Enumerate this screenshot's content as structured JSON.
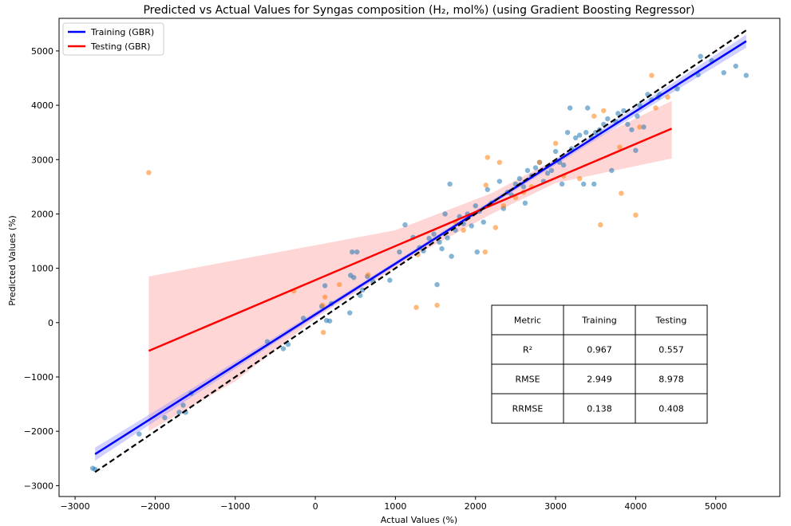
{
  "chart_data": {
    "type": "scatter",
    "title": "Predicted vs Actual Values for Syngas composition (H₂, mol%) (using Gradient Boosting Regressor)",
    "xlabel": "Actual Values (%)",
    "ylabel": "Predicted Values (%)",
    "xlim": [
      -3200,
      5800
    ],
    "ylim": [
      -3200,
      5600
    ],
    "x_ticks": [
      -3000,
      -2000,
      -1000,
      0,
      1000,
      2000,
      3000,
      4000,
      5000
    ],
    "y_ticks": [
      -3000,
      -2000,
      -1000,
      0,
      1000,
      2000,
      3000,
      4000,
      5000
    ],
    "grid": false,
    "legend_position": "top-left",
    "colors": {
      "training_points": "#1f77b4",
      "testing_points": "#ff7f0e",
      "training_line": "#0000ff",
      "testing_line": "#ff0000",
      "training_band": "#9999ff",
      "testing_band": "#ff9999",
      "ideal_line": "#000000"
    },
    "legend": [
      {
        "label": "Training (GBR)",
        "color": "#0000ff"
      },
      {
        "label": "Testing (GBR)",
        "color": "#ff0000"
      }
    ],
    "ideal_line": {
      "x": [
        -2750,
        5380
      ],
      "y": [
        -2750,
        5380
      ]
    },
    "series": [
      {
        "name": "Training (GBR)",
        "kind": "points",
        "points": [
          [
            -2780,
            -2680
          ],
          [
            -2750,
            -2700
          ],
          [
            -2200,
            -2050
          ],
          [
            -1880,
            -1750
          ],
          [
            -1700,
            -1650
          ],
          [
            -1650,
            -1520
          ],
          [
            -1620,
            -1650
          ],
          [
            -1550,
            -1300
          ],
          [
            -600,
            -350
          ],
          [
            -400,
            -480
          ],
          [
            -340,
            -400
          ],
          [
            -150,
            80
          ],
          [
            80,
            300
          ],
          [
            120,
            680
          ],
          [
            140,
            40
          ],
          [
            180,
            30
          ],
          [
            200,
            350
          ],
          [
            430,
            180
          ],
          [
            440,
            870
          ],
          [
            480,
            830
          ],
          [
            460,
            1300
          ],
          [
            520,
            1300
          ],
          [
            560,
            500
          ],
          [
            590,
            600
          ],
          [
            650,
            850
          ],
          [
            720,
            760
          ],
          [
            930,
            780
          ],
          [
            1050,
            1300
          ],
          [
            1120,
            1800
          ],
          [
            1220,
            1570
          ],
          [
            1300,
            1380
          ],
          [
            1350,
            1320
          ],
          [
            1420,
            1550
          ],
          [
            1480,
            1630
          ],
          [
            1520,
            700
          ],
          [
            1550,
            1480
          ],
          [
            1580,
            1360
          ],
          [
            1620,
            2000
          ],
          [
            1650,
            1560
          ],
          [
            1680,
            2550
          ],
          [
            1700,
            1220
          ],
          [
            1750,
            1700
          ],
          [
            1800,
            1950
          ],
          [
            1850,
            1820
          ],
          [
            1900,
            2000
          ],
          [
            1950,
            1780
          ],
          [
            2000,
            2150
          ],
          [
            2020,
            1300
          ],
          [
            2050,
            2050
          ],
          [
            2100,
            1850
          ],
          [
            2150,
            2450
          ],
          [
            2200,
            2200
          ],
          [
            2300,
            2600
          ],
          [
            2350,
            2100
          ],
          [
            2400,
            2400
          ],
          [
            2450,
            2350
          ],
          [
            2500,
            2550
          ],
          [
            2550,
            2650
          ],
          [
            2600,
            2500
          ],
          [
            2620,
            2200
          ],
          [
            2650,
            2800
          ],
          [
            2700,
            2700
          ],
          [
            2750,
            2850
          ],
          [
            2800,
            2950
          ],
          [
            2850,
            2600
          ],
          [
            2900,
            2750
          ],
          [
            2950,
            2800
          ],
          [
            3000,
            3150
          ],
          [
            3050,
            2950
          ],
          [
            3080,
            2550
          ],
          [
            3100,
            2900
          ],
          [
            3150,
            3500
          ],
          [
            3180,
            3950
          ],
          [
            3200,
            3200
          ],
          [
            3250,
            3400
          ],
          [
            3300,
            3450
          ],
          [
            3350,
            2550
          ],
          [
            3380,
            3500
          ],
          [
            3400,
            3950
          ],
          [
            3450,
            3400
          ],
          [
            3480,
            2550
          ],
          [
            3500,
            3500
          ],
          [
            3550,
            3550
          ],
          [
            3600,
            3650
          ],
          [
            3650,
            3750
          ],
          [
            3700,
            2800
          ],
          [
            3750,
            3700
          ],
          [
            3780,
            3850
          ],
          [
            3850,
            3900
          ],
          [
            3900,
            3650
          ],
          [
            3950,
            3550
          ],
          [
            4000,
            3170
          ],
          [
            4020,
            3800
          ],
          [
            4050,
            4000
          ],
          [
            4100,
            3600
          ],
          [
            4150,
            4200
          ],
          [
            4200,
            4100
          ],
          [
            4280,
            4150
          ],
          [
            4300,
            4200
          ],
          [
            4520,
            4300
          ],
          [
            4780,
            4560
          ],
          [
            4810,
            4900
          ],
          [
            4950,
            4820
          ],
          [
            5100,
            4600
          ],
          [
            5250,
            4720
          ],
          [
            5380,
            4550
          ]
        ]
      },
      {
        "name": "Testing (GBR)",
        "kind": "points",
        "points": [
          [
            -2080,
            2760
          ],
          [
            -270,
            580
          ],
          [
            90,
            320
          ],
          [
            100,
            -180
          ],
          [
            120,
            470
          ],
          [
            300,
            700
          ],
          [
            660,
            880
          ],
          [
            1260,
            280
          ],
          [
            1280,
            1250
          ],
          [
            1520,
            320
          ],
          [
            1750,
            1850
          ],
          [
            1850,
            1700
          ],
          [
            2120,
            1300
          ],
          [
            2130,
            2530
          ],
          [
            2150,
            3040
          ],
          [
            2250,
            1750
          ],
          [
            2300,
            2950
          ],
          [
            2350,
            2150
          ],
          [
            2500,
            2300
          ],
          [
            2600,
            2400
          ],
          [
            2700,
            2500
          ],
          [
            2800,
            2950
          ],
          [
            3000,
            3300
          ],
          [
            3100,
            2700
          ],
          [
            3300,
            2650
          ],
          [
            3480,
            3800
          ],
          [
            3600,
            3900
          ],
          [
            3560,
            1800
          ],
          [
            3800,
            3230
          ],
          [
            3820,
            2380
          ],
          [
            4000,
            1980
          ],
          [
            4050,
            3600
          ],
          [
            4200,
            4550
          ],
          [
            4250,
            3950
          ],
          [
            4400,
            4150
          ]
        ]
      },
      {
        "name": "Training (GBR)",
        "kind": "fit",
        "x": [
          -2750,
          5380
        ],
        "y": [
          -2420,
          5180
        ],
        "band_halfwidth_end": 120,
        "band_halfwidth_mid": 40
      },
      {
        "name": "Testing (GBR)",
        "kind": "fit",
        "x": [
          -2080,
          4450
        ],
        "y": [
          -520,
          3570
        ],
        "band_upper": [
          [
            -2080,
            850
          ],
          [
            1000,
            1700
          ],
          [
            2200,
            2380
          ],
          [
            3500,
            3400
          ],
          [
            4450,
            4080
          ]
        ],
        "band_lower": [
          [
            -2080,
            -2000
          ],
          [
            -1000,
            -1080
          ],
          [
            0,
            80
          ],
          [
            1200,
            1200
          ],
          [
            2200,
            2000
          ],
          [
            3000,
            2570
          ],
          [
            4450,
            3020
          ]
        ]
      }
    ],
    "metrics_table": {
      "headers": [
        "Metric",
        "Training",
        "Testing"
      ],
      "rows": [
        [
          "R²",
          "0.967",
          "0.557"
        ],
        [
          "RMSE",
          "2.949",
          "8.978"
        ],
        [
          "RRMSE",
          "0.138",
          "0.408"
        ]
      ]
    }
  }
}
